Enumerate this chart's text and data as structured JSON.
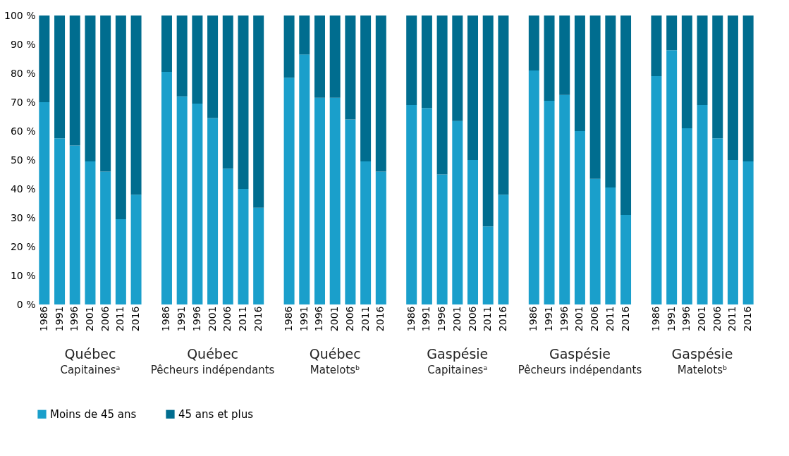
{
  "chart_data": {
    "type": "bar",
    "stacked": true,
    "categories": [
      "1986",
      "1991",
      "1996",
      "2001",
      "2006",
      "2011",
      "2016",
      null,
      "1986",
      "1991",
      "1996",
      "2001",
      "2006",
      "2011",
      "2016",
      null,
      "1986",
      "1991",
      "1996",
      "2001",
      "2006",
      "2011",
      "2016",
      null,
      "1986",
      "1991",
      "1996",
      "2001",
      "2006",
      "2011",
      "2016",
      null,
      "1986",
      "1991",
      "1996",
      "2001",
      "2006",
      "2011",
      "2016",
      null,
      "1986",
      "1991",
      "1996",
      "2001",
      "2006",
      "2011",
      "2016"
    ],
    "series": [
      {
        "name": "Moins de 45 ans",
        "color": "#1a9fcb",
        "values": [
          70,
          57.5,
          55,
          49.5,
          46,
          29.5,
          38,
          null,
          80.5,
          72,
          69.5,
          64.5,
          47,
          40,
          33.5,
          null,
          78.5,
          86.5,
          71.5,
          71.5,
          64,
          49.5,
          46,
          null,
          69,
          68,
          45,
          63.5,
          50,
          27,
          38,
          null,
          81,
          70.5,
          72.5,
          60,
          43.5,
          40.5,
          31,
          null,
          79,
          88,
          61,
          69,
          57.5,
          50,
          49.5
        ]
      },
      {
        "name": "45 ans et plus",
        "color": "#006d8f",
        "values": [
          30,
          42.5,
          45,
          50.5,
          54,
          70.5,
          62,
          null,
          19.5,
          28,
          30.5,
          35.5,
          53,
          60,
          66.5,
          null,
          21.5,
          13.5,
          28.5,
          28.5,
          36,
          50.5,
          54,
          null,
          31,
          32,
          55,
          36.5,
          50,
          73,
          62,
          null,
          19,
          29.5,
          27.5,
          40,
          56.5,
          59.5,
          69,
          null,
          21,
          12,
          39,
          31,
          42.5,
          50,
          50.5
        ]
      }
    ],
    "ylim": [
      0,
      100
    ],
    "yticks": [
      {
        "value": 0,
        "label": "0 %"
      },
      {
        "value": 10,
        "label": "10 %"
      },
      {
        "value": 20,
        "label": "20 %"
      },
      {
        "value": 30,
        "label": "30 %"
      },
      {
        "value": 40,
        "label": "40 %"
      },
      {
        "value": 50,
        "label": "50 %"
      },
      {
        "value": 60,
        "label": "60 %"
      },
      {
        "value": 70,
        "label": "70 %"
      },
      {
        "value": 80,
        "label": "80 %"
      },
      {
        "value": 90,
        "label": "90 %"
      },
      {
        "value": 100,
        "label": "100 %"
      }
    ],
    "annotations": [
      "Québec\nCapitainesᵃ",
      "Québec\nPêcheurs indépendants",
      "Québec\nMatelotsᵇ",
      "Gaspésie\nCapitainesᵃ",
      "Gaspésie\nPêcheurs indépendants",
      "Gaspésie\nMatelotsᵇ"
    ],
    "grid": false,
    "legend": "bottom"
  }
}
